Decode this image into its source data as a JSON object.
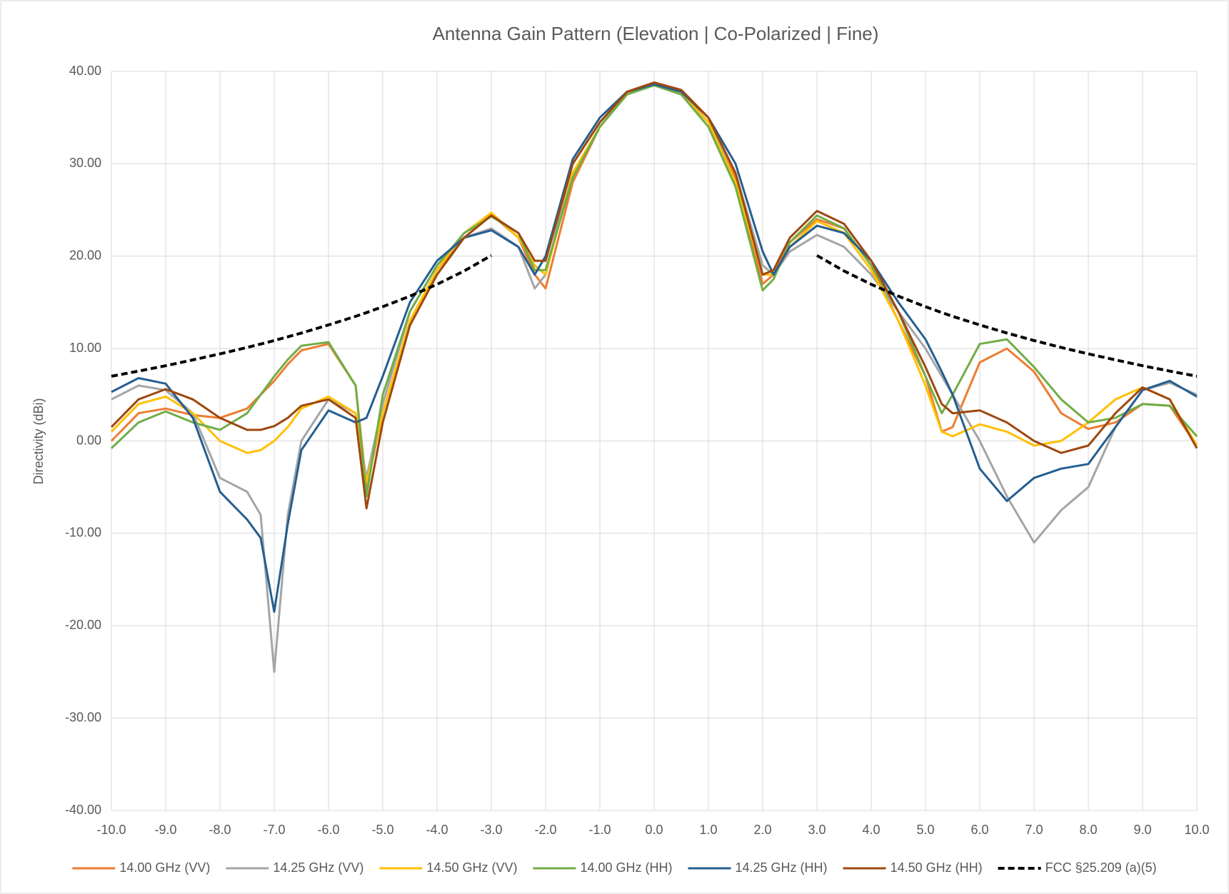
{
  "chart_data": {
    "type": "line",
    "title": "Antenna Gain Pattern (Elevation | Co-Polarized  | Fine)",
    "y_label": "Directivity (dBi)",
    "grid": true,
    "legend": "bottom",
    "xlim": [
      -10,
      10
    ],
    "ylim": [
      -40,
      40
    ],
    "xticks": [
      {
        "value": -10,
        "label": "-10.0"
      },
      {
        "value": -9,
        "label": "-9.0"
      },
      {
        "value": -8,
        "label": "-8.0"
      },
      {
        "value": -7,
        "label": "-7.0"
      },
      {
        "value": -6,
        "label": "-6.0"
      },
      {
        "value": -5,
        "label": "-5.0"
      },
      {
        "value": -4,
        "label": "-4.0"
      },
      {
        "value": -3,
        "label": "-3.0"
      },
      {
        "value": -2,
        "label": "-2.0"
      },
      {
        "value": -1,
        "label": "-1.0"
      },
      {
        "value": 0,
        "label": "0.0"
      },
      {
        "value": 1,
        "label": "1.0"
      },
      {
        "value": 2,
        "label": "2.0"
      },
      {
        "value": 3,
        "label": "3.0"
      },
      {
        "value": 4,
        "label": "4.0"
      },
      {
        "value": 5,
        "label": "5.0"
      },
      {
        "value": 6,
        "label": "6.0"
      },
      {
        "value": 7,
        "label": "7.0"
      },
      {
        "value": 8,
        "label": "8.0"
      },
      {
        "value": 9,
        "label": "9.0"
      },
      {
        "value": 10,
        "label": "10.0"
      }
    ],
    "yticks": [
      {
        "value": -40,
        "label": "-40.00"
      },
      {
        "value": -30,
        "label": "-30.00"
      },
      {
        "value": -20,
        "label": "-20.00"
      },
      {
        "value": -10,
        "label": "-10.00"
      },
      {
        "value": 0,
        "label": "0.00"
      },
      {
        "value": 10,
        "label": "10.00"
      },
      {
        "value": 20,
        "label": "20.00"
      },
      {
        "value": 30,
        "label": "30.00"
      },
      {
        "value": 40,
        "label": "40.00"
      }
    ],
    "x": [
      -10,
      -9.5,
      -9,
      -8.5,
      -8,
      -7.5,
      -7.25,
      -7,
      -6.75,
      -6.5,
      -6,
      -5.5,
      -5.3,
      -5,
      -4.5,
      -4,
      -3.5,
      -3,
      -2.5,
      -2.2,
      -2,
      -1.5,
      -1,
      -0.5,
      0,
      0.5,
      1,
      1.5,
      2,
      2.2,
      2.5,
      3,
      3.5,
      4,
      4.5,
      5,
      5.3,
      5.5,
      6,
      6.5,
      7,
      7.5,
      8,
      8.5,
      9,
      9.5,
      10
    ],
    "series": [
      {
        "name": "14.00 GHz (VV)",
        "color": "#ed7d31",
        "values": [
          0,
          3,
          3.5,
          2.8,
          2.5,
          3.5,
          5,
          6.5,
          8.3,
          9.8,
          10.5,
          6,
          -5,
          3,
          13,
          18.5,
          22,
          24.5,
          22,
          18,
          16.5,
          28,
          34,
          37.5,
          38.7,
          37.8,
          34.5,
          28.5,
          17,
          18,
          21.5,
          24,
          23,
          19,
          13,
          7,
          1,
          1.5,
          8.5,
          10,
          7.5,
          3,
          1.3,
          2,
          4,
          3.8,
          -0.5
        ]
      },
      {
        "name": "14.25 GHz (VV)",
        "color": "#a5a5a5",
        "values": [
          4.5,
          6,
          5.5,
          3,
          -4,
          -5.5,
          -8,
          -25,
          -8,
          0,
          4.5,
          3,
          -4,
          4,
          14,
          19,
          22,
          23,
          21,
          16.5,
          18,
          30,
          34.5,
          37.5,
          38.5,
          37.5,
          34.5,
          29,
          19,
          18,
          20.5,
          22.3,
          21,
          18,
          14,
          10,
          7,
          5,
          0,
          -6,
          -11,
          -7.5,
          -5,
          1.5,
          5.5,
          6.3,
          5
        ]
      },
      {
        "name": "14.50 GHz (VV)",
        "color": "#ffc000",
        "values": [
          1,
          4,
          4.8,
          3,
          0,
          -1.3,
          -1,
          0,
          1.5,
          3.5,
          4.8,
          3,
          -4.5,
          3,
          13,
          18.5,
          22.5,
          24.7,
          22,
          19,
          18,
          29,
          34,
          37.5,
          38.6,
          37.6,
          34.5,
          28,
          18,
          18,
          21,
          23.8,
          22.5,
          18.5,
          13,
          6,
          1,
          0.5,
          1.8,
          1,
          -0.5,
          0,
          2,
          4.5,
          5.8,
          4.5,
          -0.5
        ]
      },
      {
        "name": "14.00 GHz (HH)",
        "color": "#70ad47",
        "values": [
          -0.8,
          2,
          3.2,
          2,
          1.2,
          3,
          5,
          7,
          8.8,
          10.3,
          10.7,
          6,
          -6,
          5,
          14,
          19,
          22.5,
          24.3,
          22.5,
          18.5,
          18.5,
          28.5,
          34,
          37.5,
          38.5,
          37.5,
          34,
          27.5,
          16.3,
          17.5,
          21.5,
          24.4,
          23,
          19,
          14,
          7,
          3,
          5,
          10.5,
          11,
          8,
          4.5,
          2,
          2.5,
          4,
          3.8,
          0.5
        ]
      },
      {
        "name": "14.25 GHz (HH)",
        "color": "#255e91",
        "values": [
          5.3,
          6.8,
          6.2,
          2.5,
          -5.5,
          -8.5,
          -10.5,
          -18.5,
          -9,
          -1,
          3.3,
          2,
          2.5,
          7,
          15,
          19.5,
          22,
          22.8,
          21,
          18,
          20,
          30.5,
          35,
          37.8,
          38.6,
          37.8,
          35,
          30,
          20.5,
          18,
          21,
          23.3,
          22.5,
          19.5,
          15,
          11,
          7.5,
          5,
          -3,
          -6.5,
          -4,
          -3,
          -2.5,
          1.5,
          5.5,
          6.5,
          4.8
        ]
      },
      {
        "name": "14.50 GHz (HH)",
        "color": "#9e480e",
        "values": [
          1.5,
          4.5,
          5.6,
          4.5,
          2.5,
          1.2,
          1.2,
          1.6,
          2.5,
          3.8,
          4.5,
          2.5,
          -7.3,
          2,
          12.5,
          18,
          22,
          24.4,
          22.5,
          19.5,
          19.5,
          30,
          34.5,
          37.8,
          38.8,
          38,
          35,
          29,
          18,
          18.5,
          22,
          24.9,
          23.5,
          19.5,
          14,
          8,
          4,
          3,
          3.3,
          2,
          0,
          -1.3,
          -0.5,
          3,
          5.8,
          4.5,
          -0.8
        ]
      },
      {
        "name": "FCC §25.209 (a)(5)",
        "color": "#000000",
        "style": "dashed",
        "values": [
          7,
          7.56,
          8.14,
          8.77,
          9.42,
          10.12,
          10.49,
          10.87,
          11.27,
          11.68,
          12.55,
          13.49,
          13.89,
          14.53,
          15.67,
          16.95,
          18.4,
          20.07,
          null,
          null,
          null,
          null,
          null,
          null,
          null,
          null,
          null,
          null,
          null,
          null,
          null,
          20.07,
          18.4,
          16.95,
          15.67,
          14.53,
          13.89,
          13.49,
          12.55,
          11.68,
          10.87,
          10.12,
          9.42,
          8.77,
          8.14,
          7.56,
          7
        ]
      }
    ]
  }
}
